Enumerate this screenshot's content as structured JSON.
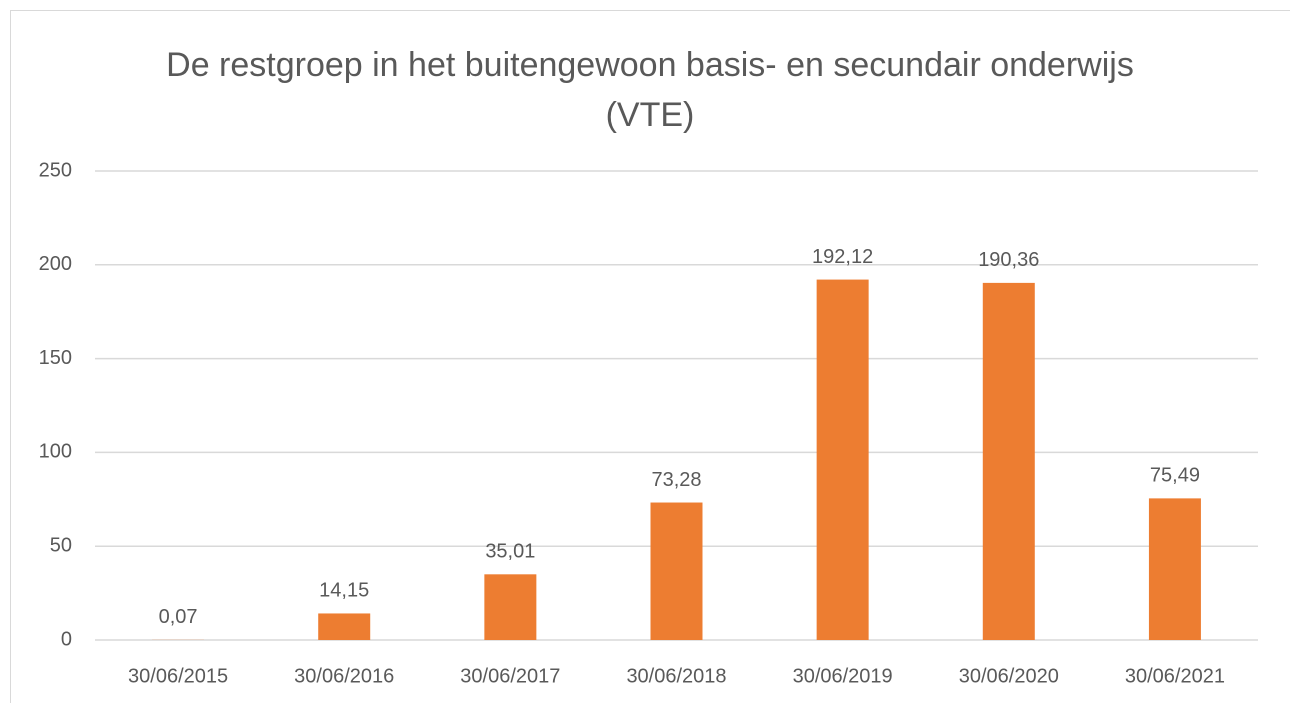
{
  "chart_data": {
    "type": "bar",
    "title": "De restgroep in het buitengewoon basis- en secundair onderwijs (VTE)",
    "categories": [
      "30/06/2015",
      "30/06/2016",
      "30/06/2017",
      "30/06/2018",
      "30/06/2019",
      "30/06/2020",
      "30/06/2021"
    ],
    "values": [
      0.07,
      14.15,
      35.01,
      73.28,
      192.12,
      190.36,
      75.49
    ],
    "value_labels": [
      "0,07",
      "14,15",
      "35,01",
      "73,28",
      "192,12",
      "190,36",
      "75,49"
    ],
    "color": "#ed7d31",
    "ylim": [
      0,
      250
    ],
    "yticks": [
      0,
      50,
      100,
      150,
      200,
      250
    ],
    "grid": true
  }
}
